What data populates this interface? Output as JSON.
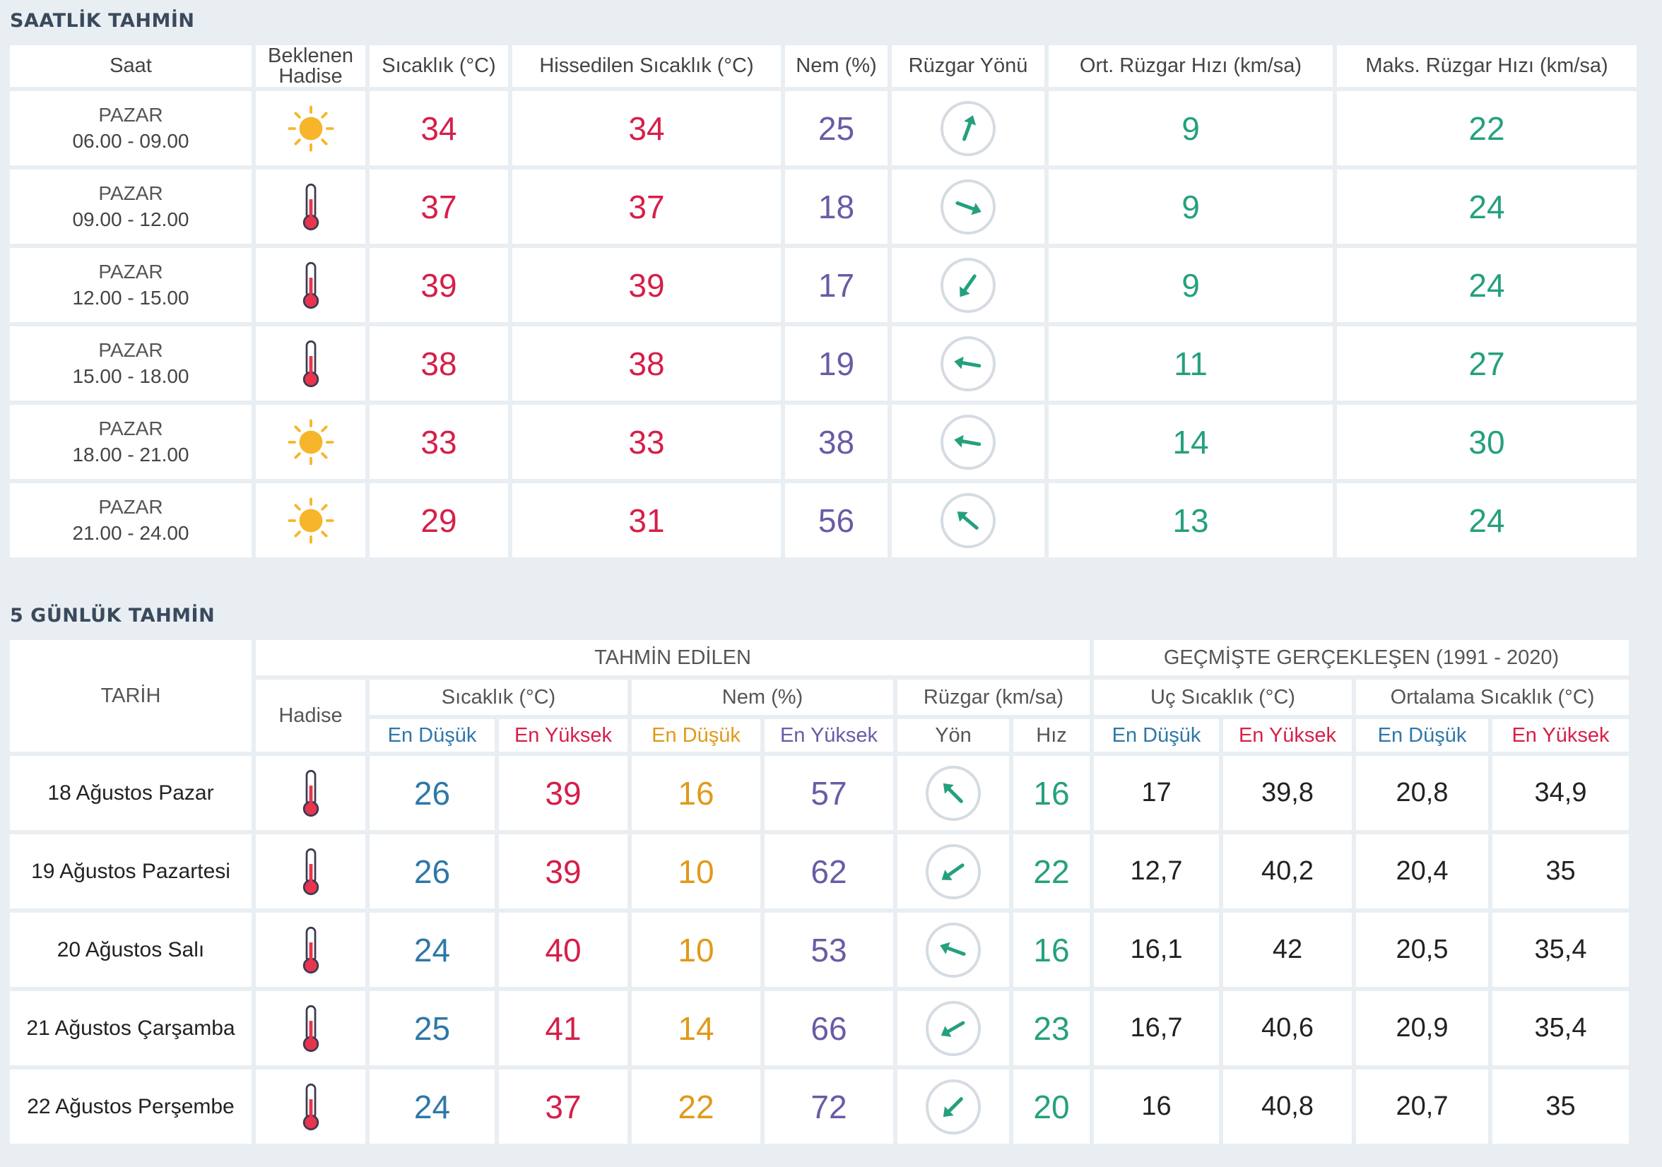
{
  "hourly": {
    "title": "SAATLİK TAHMİN",
    "headers": {
      "saat": "Saat",
      "hadise": [
        "Beklenen",
        "Hadise"
      ],
      "sicaklik": "Sıcaklık (°C)",
      "hissedilen": "Hissedilen Sıcaklık (°C)",
      "nem": "Nem (%)",
      "yon": "Rüzgar Yönü",
      "ort": "Ort. Rüzgar Hızı (km/sa)",
      "maks": "Maks. Rüzgar Hızı (km/sa)"
    },
    "rows": [
      {
        "day": "PAZAR",
        "time": "06.00 - 09.00",
        "icon": "sun-icon",
        "temp": "34",
        "feel": "34",
        "hum": "25",
        "dir": 200,
        "avg": "9",
        "max": "22"
      },
      {
        "day": "PAZAR",
        "time": "09.00 - 12.00",
        "icon": "thermometer-icon",
        "temp": "37",
        "feel": "37",
        "hum": "18",
        "dir": 290,
        "avg": "9",
        "max": "24"
      },
      {
        "day": "PAZAR",
        "time": "12.00 - 15.00",
        "icon": "thermometer-icon",
        "temp": "39",
        "feel": "39",
        "hum": "17",
        "dir": 35,
        "avg": "9",
        "max": "24"
      },
      {
        "day": "PAZAR",
        "time": "15.00 - 18.00",
        "icon": "thermometer-icon",
        "temp": "38",
        "feel": "38",
        "hum": "19",
        "dir": 100,
        "avg": "11",
        "max": "27"
      },
      {
        "day": "PAZAR",
        "time": "18.00 - 21.00",
        "icon": "sun-icon",
        "temp": "33",
        "feel": "33",
        "hum": "38",
        "dir": 100,
        "avg": "14",
        "max": "30"
      },
      {
        "day": "PAZAR",
        "time": "21.00 - 24.00",
        "icon": "sun-icon",
        "temp": "29",
        "feel": "31",
        "hum": "56",
        "dir": 130,
        "avg": "13",
        "max": "24"
      }
    ]
  },
  "daily": {
    "title": "5 GÜNLÜK TAHMİN",
    "headers": {
      "tarih": "TARİH",
      "tahmin": "TAHMİN EDİLEN",
      "gecmis": "GEÇMİŞTE GERÇEKLEŞEN (1991 - 2020)",
      "hadise": "Hadise",
      "sicaklik": "Sıcaklık (°C)",
      "nem": "Nem (%)",
      "ruzgar": "Rüzgar (km/sa)",
      "uc": "Uç Sıcaklık (°C)",
      "ortalama": "Ortalama Sıcaklık (°C)",
      "en_dusuk": "En Düşük",
      "en_yuksek": "En Yüksek",
      "yon": "Yön",
      "hiz": "Hız"
    },
    "rows": [
      {
        "date": "18 Ağustos Pazar",
        "icon": "thermometer-icon",
        "tmin": "26",
        "tmax": "39",
        "hmin": "16",
        "hmax": "57",
        "dir": 135,
        "speed": "16",
        "uc_min": "17",
        "uc_max": "39,8",
        "ort_min": "20,8",
        "ort_max": "34,9"
      },
      {
        "date": "19 Ağustos Pazartesi",
        "icon": "thermometer-icon",
        "tmin": "26",
        "tmax": "39",
        "hmin": "10",
        "hmax": "62",
        "dir": 55,
        "speed": "22",
        "uc_min": "12,7",
        "uc_max": "40,2",
        "ort_min": "20,4",
        "ort_max": "35"
      },
      {
        "date": "20 Ağustos Salı",
        "icon": "thermometer-icon",
        "tmin": "24",
        "tmax": "40",
        "hmin": "10",
        "hmax": "53",
        "dir": 110,
        "speed": "16",
        "uc_min": "16,1",
        "uc_max": "42",
        "ort_min": "20,5",
        "ort_max": "35,4"
      },
      {
        "date": "21 Ağustos Çarşamba",
        "icon": "thermometer-icon",
        "tmin": "25",
        "tmax": "41",
        "hmin": "14",
        "hmax": "66",
        "dir": 60,
        "speed": "23",
        "uc_min": "16,7",
        "uc_max": "40,6",
        "ort_min": "20,9",
        "ort_max": "35,4"
      },
      {
        "date": "22 Ağustos Perşembe",
        "icon": "thermometer-icon",
        "tmin": "24",
        "tmax": "37",
        "hmin": "22",
        "hmax": "72",
        "dir": 45,
        "speed": "20",
        "uc_min": "16",
        "uc_max": "40,8",
        "ort_min": "20,7",
        "ort_max": "35"
      }
    ]
  },
  "colors": {
    "temp": "#d61f49",
    "humidity": "#6b5aa6",
    "wind": "#25a07e",
    "low_blue": "#2e77a8",
    "low_orange": "#e09a19",
    "sun": "#f7b52c"
  }
}
